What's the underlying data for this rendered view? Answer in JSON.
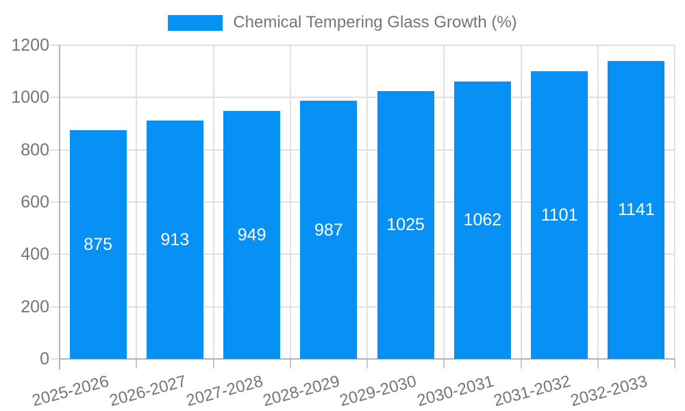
{
  "legend": {
    "label": "Chemical Tempering Glass Growth (%)"
  },
  "colors": {
    "bar": "#0891f5",
    "axis_text": "#757575",
    "grid": "#e0e0e0",
    "axis_line": "#b3b3b3",
    "tick": "#c9c9c9",
    "data_label": "#ffffff",
    "background": "#ffffff"
  },
  "chart_data": {
    "type": "bar",
    "title": "Chemical Tempering Glass Growth (%)",
    "categories": [
      "2025-2026",
      "2026-2027",
      "2027-2028",
      "2028-2029",
      "2029-2030",
      "2030-2031",
      "2031-2032",
      "2032-2033"
    ],
    "values": [
      875,
      913,
      949,
      987,
      1025,
      1062,
      1101,
      1141
    ],
    "xlabel": "",
    "ylabel": "",
    "ylim": [
      0,
      1200
    ],
    "yticks": [
      0,
      200,
      400,
      600,
      800,
      1000,
      1200
    ],
    "grid": true,
    "legend_position": "top-center",
    "bar_color": "#0891f5",
    "data_labels": "inside-center-white",
    "x_label_rotation_deg": -15
  }
}
